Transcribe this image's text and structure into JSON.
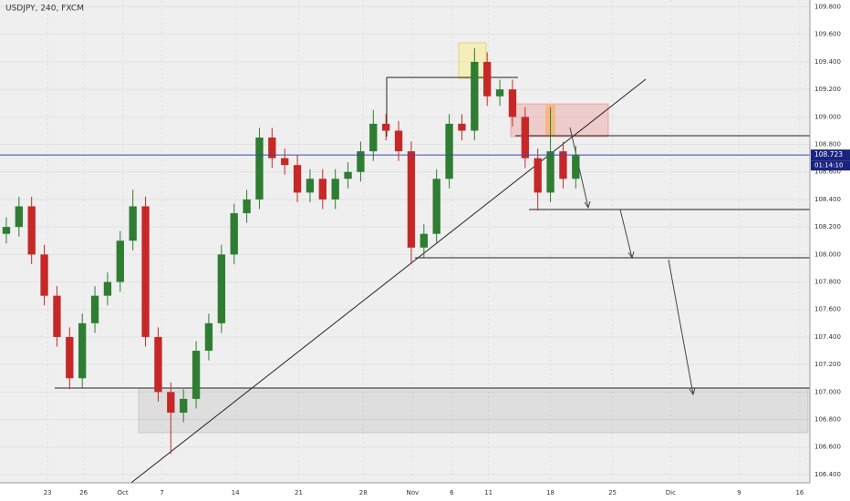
{
  "chart_data": {
    "type": "candlestick",
    "title": "USDJPY, 240, FXCM",
    "up_color": "#2e7d32",
    "down_color": "#c62828",
    "open": [
      108.15,
      108.2,
      108.35,
      108.0,
      107.7,
      107.4,
      107.1,
      107.5,
      107.7,
      107.8,
      108.1,
      108.35,
      107.4,
      107.0,
      106.85,
      106.95,
      107.3,
      107.5,
      108.0,
      108.3,
      108.4,
      108.85,
      108.7,
      108.65,
      108.45,
      108.55,
      108.4,
      108.55,
      108.6,
      108.75,
      108.95,
      108.9,
      108.75,
      108.05,
      108.15,
      108.55,
      108.95,
      108.9,
      109.4,
      109.15,
      109.2,
      109.0,
      108.7,
      108.45,
      108.75,
      108.55
    ],
    "high": [
      108.27,
      108.42,
      108.42,
      108.07,
      107.77,
      107.47,
      107.57,
      107.77,
      107.87,
      108.17,
      108.47,
      108.42,
      107.47,
      107.07,
      107.02,
      107.37,
      107.57,
      108.07,
      108.37,
      108.47,
      108.92,
      108.92,
      108.77,
      108.72,
      108.62,
      108.62,
      108.62,
      108.67,
      108.82,
      109.05,
      109.02,
      108.97,
      108.82,
      108.22,
      108.62,
      109.02,
      109.02,
      109.5,
      109.47,
      109.27,
      109.27,
      109.07,
      108.77,
      109.07,
      108.82,
      108.79
    ],
    "low": [
      108.08,
      108.13,
      107.93,
      107.63,
      107.33,
      107.02,
      107.03,
      107.43,
      107.63,
      107.73,
      108.03,
      107.33,
      106.93,
      106.55,
      106.78,
      106.88,
      107.23,
      107.43,
      107.93,
      108.23,
      108.33,
      108.63,
      108.58,
      108.38,
      108.38,
      108.33,
      108.33,
      108.48,
      108.53,
      108.68,
      108.83,
      108.68,
      107.93,
      107.98,
      108.08,
      108.48,
      108.83,
      108.83,
      109.08,
      109.08,
      108.93,
      108.63,
      108.32,
      108.38,
      108.48,
      108.48
    ],
    "close": [
      108.2,
      108.35,
      108.0,
      107.7,
      107.4,
      107.1,
      107.5,
      107.7,
      107.8,
      108.1,
      108.35,
      107.4,
      107.0,
      106.85,
      106.95,
      107.3,
      107.5,
      108.0,
      108.3,
      108.4,
      108.85,
      108.7,
      108.65,
      108.45,
      108.55,
      108.4,
      108.55,
      108.6,
      108.75,
      108.95,
      108.9,
      108.75,
      108.05,
      108.15,
      108.55,
      108.95,
      108.9,
      109.4,
      109.15,
      109.2,
      109.0,
      108.7,
      108.45,
      108.75,
      108.55,
      108.72
    ],
    "xlim": [
      0,
      64
    ],
    "xticks": [
      {
        "value": 3.75,
        "label": "23"
      },
      {
        "value": 6.6,
        "label": "26"
      },
      {
        "value": 9.7,
        "label": "Oct"
      },
      {
        "value": 12.8,
        "label": "7"
      },
      {
        "value": 18.6,
        "label": "14"
      },
      {
        "value": 23.6,
        "label": "21"
      },
      {
        "value": 28.7,
        "label": "28"
      },
      {
        "value": 32.6,
        "label": "Nov"
      },
      {
        "value": 35.7,
        "label": "6"
      },
      {
        "value": 38.6,
        "label": "11"
      },
      {
        "value": 43.5,
        "label": "18"
      },
      {
        "value": 48.4,
        "label": "25"
      },
      {
        "value": 53,
        "label": "Dic"
      },
      {
        "value": 58.4,
        "label": "9"
      },
      {
        "value": 63.2,
        "label": "16"
      }
    ],
    "ylim": [
      106.34,
      109.85
    ],
    "yticks": [
      {
        "value": 106.4,
        "label": "106.400"
      },
      {
        "value": 106.6,
        "label": "106.600"
      },
      {
        "value": 106.8,
        "label": "106.800"
      },
      {
        "value": 107.0,
        "label": "107.000"
      },
      {
        "value": 107.2,
        "label": "107.200"
      },
      {
        "value": 107.4,
        "label": "107.400"
      },
      {
        "value": 107.6,
        "label": "107.600"
      },
      {
        "value": 107.8,
        "label": "107.800"
      },
      {
        "value": 108.0,
        "label": "108.000"
      },
      {
        "value": 108.2,
        "label": "108.200"
      },
      {
        "value": 108.4,
        "label": "108.400"
      },
      {
        "value": 108.6,
        "label": "108.600"
      },
      {
        "value": 108.8,
        "label": "108.800"
      },
      {
        "value": 109.0,
        "label": "109.000"
      },
      {
        "value": 109.2,
        "label": "109.200"
      },
      {
        "value": 109.4,
        "label": "109.400"
      },
      {
        "value": 109.6,
        "label": "109.600"
      },
      {
        "value": 109.8,
        "label": "109.800"
      }
    ],
    "last_price": 108.723,
    "countdown": "01:14:10",
    "grid": true
  }
}
